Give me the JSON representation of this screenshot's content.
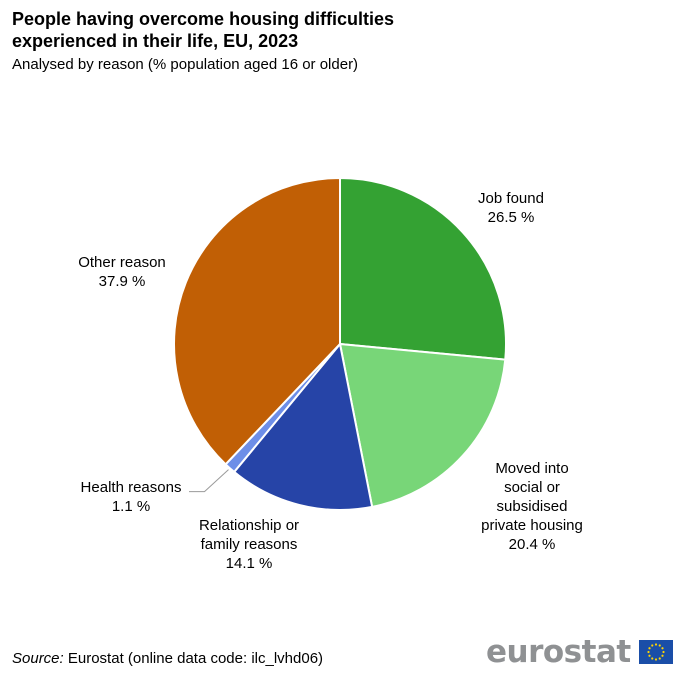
{
  "header": {
    "title_line1": "People having overcome housing difficulties",
    "title_line2": "experienced in their life, EU, 2023",
    "subtitle": "Analysed by reason (% population aged 16 or older)"
  },
  "chart_data": {
    "type": "pie",
    "title": "People having overcome housing difficulties experienced in their life, EU, 2023",
    "subtitle": "Analysed by reason (% population aged 16 or older)",
    "unit": "%",
    "slices": [
      {
        "label_lines": [
          "Job found"
        ],
        "value": 26.5,
        "value_label": "26.5 %",
        "color": "#34a233"
      },
      {
        "label_lines": [
          "Moved into",
          "social or",
          "subsidised",
          "private housing"
        ],
        "value": 20.4,
        "value_label": "20.4 %",
        "color": "#78d678"
      },
      {
        "label_lines": [
          "Relationship or",
          "family reasons"
        ],
        "value": 14.1,
        "value_label": "14.1 %",
        "color": "#2644a7"
      },
      {
        "label_lines": [
          "Health reasons"
        ],
        "value": 1.1,
        "value_label": "1.1 %",
        "color": "#6d8ee8"
      },
      {
        "label_lines": [
          "Other reason"
        ],
        "value": 37.9,
        "value_label": "37.9 %",
        "color": "#c15f05"
      }
    ]
  },
  "footer": {
    "source_label": "Source:",
    "source_text": "Eurostat (online data code: ilc_lvhd06)",
    "brand": "eurostat"
  },
  "colors": {
    "flag_blue": "#1a4ea8",
    "flag_star": "#ffd400",
    "brand_grey": "#8f9193"
  },
  "icons": {
    "eu_flag": "eu-flag-icon"
  }
}
